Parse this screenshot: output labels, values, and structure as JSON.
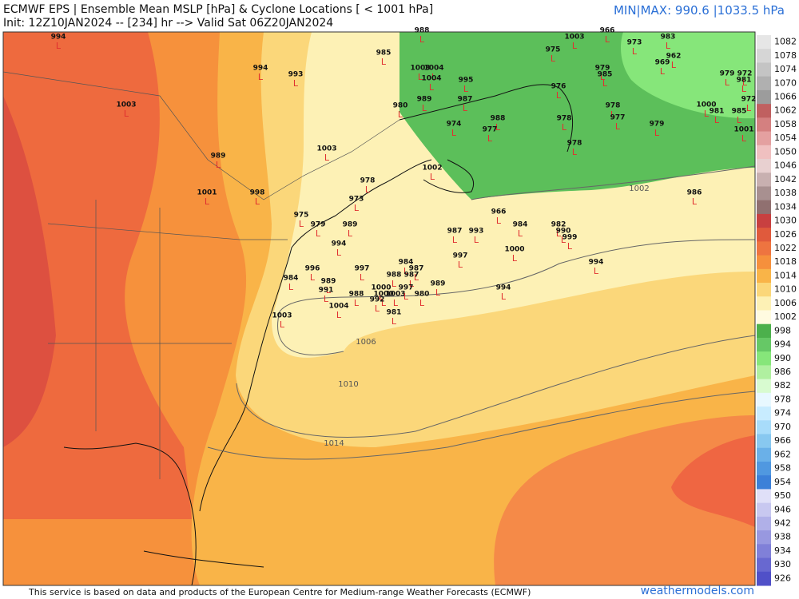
{
  "header": {
    "title": "ECMWF EPS | Ensemble Mean MSLP [hPa] & Cyclone Locations [ < 1001 hPa]",
    "init": "Init: 12Z10JAN2024 -- [234] hr --> Valid Sat 06Z20JAN2024",
    "minmax": "MIN|MAX: 990.6 |1033.5 hPa"
  },
  "colorbar": {
    "labels": [
      "1082",
      "1078",
      "1074",
      "1070",
      "1066",
      "1062",
      "1058",
      "1054",
      "1050",
      "1046",
      "1042",
      "1038",
      "1034",
      "1030",
      "1026",
      "1022",
      "1018",
      "1014",
      "1010",
      "1006",
      "1002",
      "998",
      "994",
      "990",
      "986",
      "982",
      "978",
      "974",
      "970",
      "966",
      "962",
      "958",
      "954",
      "950",
      "946",
      "942",
      "938",
      "934",
      "930",
      "926"
    ]
  },
  "contours": [
    "1002",
    "1006",
    "1010",
    "1014"
  ],
  "low_symbol": "L",
  "cyclones": [
    "994",
    "988",
    "985",
    "1003",
    "966",
    "973",
    "983",
    "975",
    "962",
    "969",
    "994",
    "993",
    "1003",
    "1004",
    "1004",
    "995",
    "979",
    "985",
    "979",
    "972",
    "981",
    "976",
    "1003",
    "989",
    "987",
    "980",
    "978",
    "1000",
    "981",
    "977",
    "978",
    "988",
    "974",
    "979",
    "977",
    "985",
    "1001",
    "972",
    "978",
    "989",
    "1003",
    "1002",
    "978",
    "1001",
    "998",
    "986",
    "973",
    "966",
    "975",
    "979",
    "989",
    "984",
    "982",
    "987",
    "993",
    "990",
    "999",
    "1000",
    "997",
    "994",
    "984",
    "994",
    "997",
    "996",
    "987",
    "988",
    "987",
    "984",
    "989",
    "989",
    "1000",
    "994",
    "991",
    "1000",
    "1003",
    "997",
    "988",
    "980",
    "992",
    "1004",
    "981",
    "1003"
  ],
  "footer": {
    "source": "This service is based on data and products of the European Centre for Medium-range Weather Forecasts (ECMWF)",
    "site": "weathermodels.com"
  }
}
